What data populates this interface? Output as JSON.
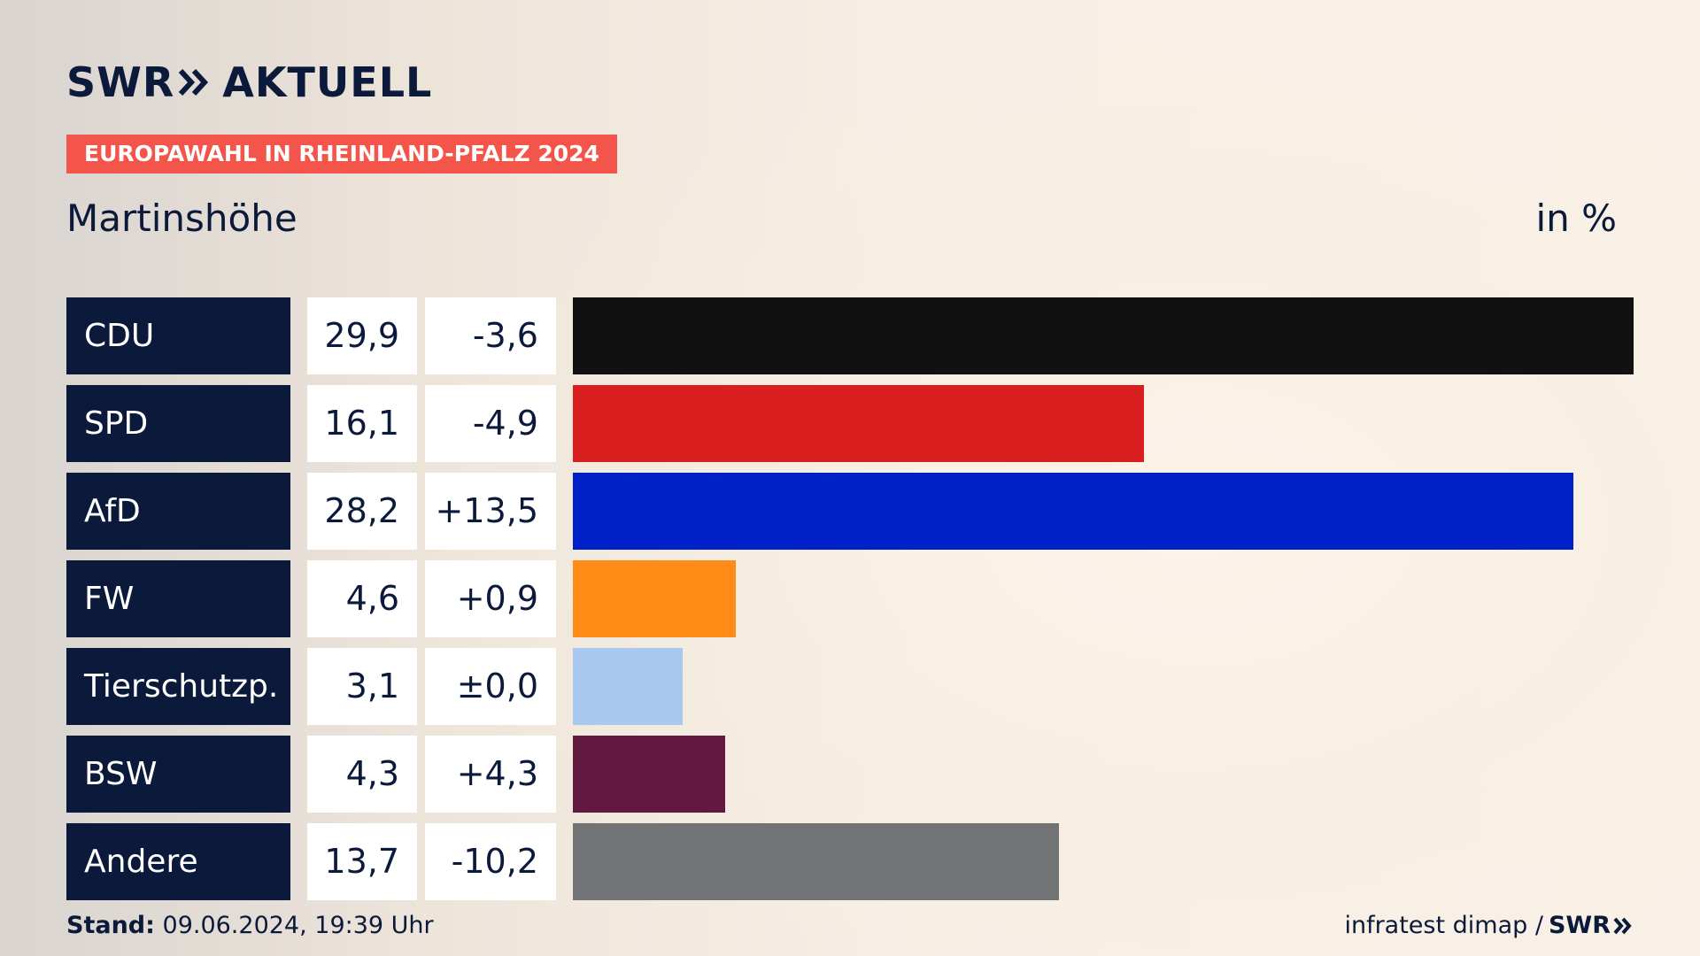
{
  "header": {
    "logo_left": "SWR",
    "logo_right": "AKTUELL",
    "badge": "EUROPAWAHL IN RHEINLAND-PFALZ 2024",
    "region": "Martinshöhe",
    "unit": "in %"
  },
  "chart_data": {
    "type": "bar",
    "orientation": "horizontal",
    "title": "Martinshöhe",
    "unit": "in %",
    "xlim": [
      0,
      29.9
    ],
    "categories": [
      "CDU",
      "SPD",
      "AfD",
      "FW",
      "Tierschutzp.",
      "BSW",
      "Andere"
    ],
    "values": [
      29.9,
      16.1,
      28.2,
      4.6,
      3.1,
      4.3,
      13.7
    ],
    "value_labels": [
      "29,9",
      "16,1",
      "28,2",
      "4,6",
      "3,1",
      "4,3",
      "13,7"
    ],
    "diff_labels": [
      "-3,6",
      "-4,9",
      "+13,5",
      "+0,9",
      "±0,0",
      "+4,3",
      "-10,2"
    ],
    "colors": [
      "#111111",
      "#d81e1e",
      "#0021c8",
      "#ff8c17",
      "#a9c8f0",
      "#63183f",
      "#727374"
    ]
  },
  "footer": {
    "stand_label": "Stand:",
    "stand_value": "09.06.2024, 19:39 Uhr",
    "source": "infratest dimap /",
    "brand": "SWR"
  }
}
